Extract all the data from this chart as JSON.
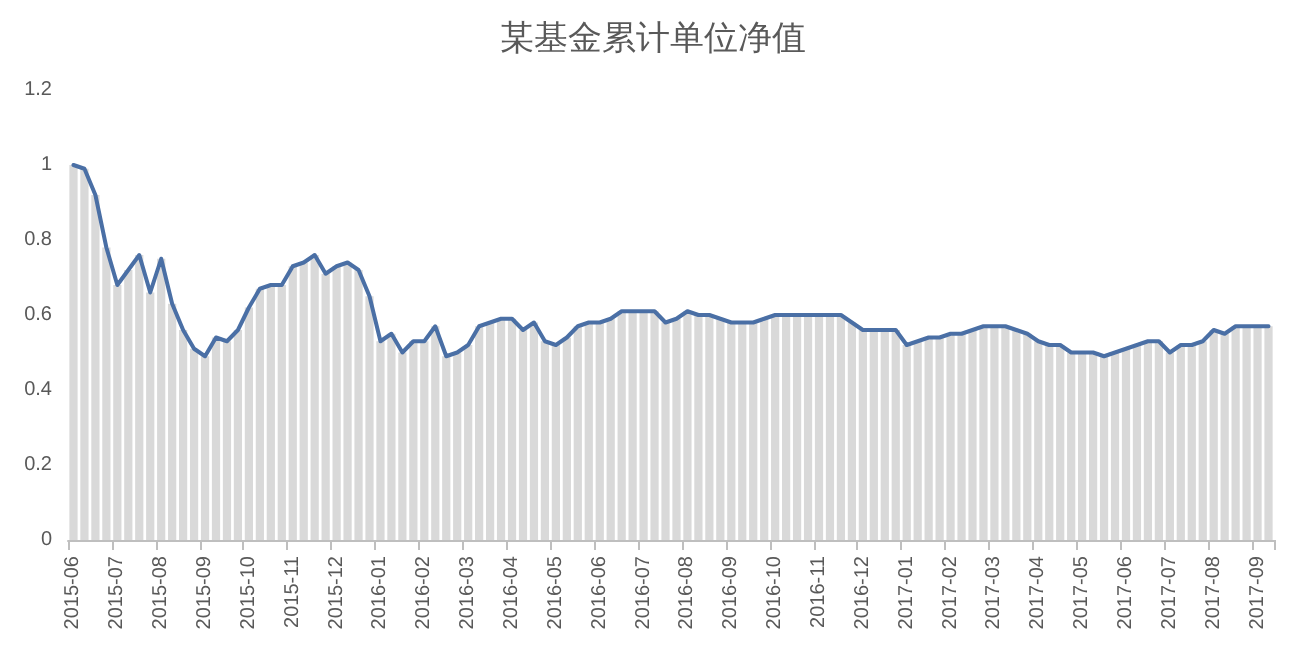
{
  "chart_data": {
    "type": "line",
    "title": "某基金累计单位净值",
    "categories": [
      "2015-06",
      null,
      null,
      null,
      "2015-07",
      null,
      null,
      null,
      "2015-08",
      null,
      null,
      null,
      "2015-09",
      null,
      null,
      null,
      "2015-10",
      null,
      null,
      null,
      "2015-11",
      null,
      null,
      null,
      "2015-12",
      null,
      null,
      null,
      "2016-01",
      null,
      null,
      null,
      "2016-02",
      null,
      null,
      null,
      "2016-03",
      null,
      null,
      null,
      "2016-04",
      null,
      null,
      null,
      "2016-05",
      null,
      null,
      null,
      "2016-06",
      null,
      null,
      null,
      "2016-07",
      null,
      null,
      null,
      "2016-08",
      null,
      null,
      null,
      "2016-09",
      null,
      null,
      null,
      "2016-10",
      null,
      null,
      null,
      "2016-11",
      null,
      null,
      null,
      "2016-12",
      null,
      null,
      null,
      "2017-01",
      null,
      null,
      null,
      "2017-02",
      null,
      null,
      null,
      "2017-03",
      null,
      null,
      null,
      "2017-04",
      null,
      null,
      null,
      "2017-05",
      null,
      null,
      null,
      "2017-06",
      null,
      null,
      null,
      "2017-07",
      null,
      null,
      null,
      "2017-08",
      null,
      null,
      null,
      "2017-09",
      null
    ],
    "series": [
      {
        "type": "bar",
        "color": "#d9d9d9",
        "values": [
          1.0,
          0.99,
          0.92,
          0.78,
          0.68,
          0.72,
          0.76,
          0.66,
          0.75,
          0.63,
          0.56,
          0.51,
          0.49,
          0.54,
          0.53,
          0.56,
          0.62,
          0.67,
          0.68,
          0.68,
          0.73,
          0.74,
          0.76,
          0.71,
          0.73,
          0.74,
          0.72,
          0.65,
          0.53,
          0.55,
          0.5,
          0.53,
          0.53,
          0.57,
          0.49,
          0.5,
          0.52,
          0.57,
          0.58,
          0.59,
          0.59,
          0.56,
          0.58,
          0.53,
          0.52,
          0.54,
          0.57,
          0.58,
          0.58,
          0.59,
          0.61,
          0.61,
          0.61,
          0.61,
          0.58,
          0.59,
          0.61,
          0.6,
          0.6,
          0.59,
          0.58,
          0.58,
          0.58,
          0.59,
          0.6,
          0.6,
          0.6,
          0.6,
          0.6,
          0.6,
          0.6,
          0.58,
          0.56,
          0.56,
          0.56,
          0.56,
          0.52,
          0.53,
          0.54,
          0.54,
          0.55,
          0.55,
          0.56,
          0.57,
          0.57,
          0.57,
          0.56,
          0.55,
          0.53,
          0.52,
          0.52,
          0.5,
          0.5,
          0.5,
          0.49,
          0.5,
          0.51,
          0.52,
          0.53,
          0.53,
          0.5,
          0.52,
          0.52,
          0.53,
          0.56,
          0.55,
          0.57,
          0.57,
          0.57,
          0.57
        ]
      },
      {
        "color": "#4a6fa5",
        "values": [
          1.0,
          0.99,
          0.92,
          0.78,
          0.68,
          0.72,
          0.76,
          0.66,
          0.75,
          0.63,
          0.56,
          0.51,
          0.49,
          0.54,
          0.53,
          0.56,
          0.62,
          0.67,
          0.68,
          0.68,
          0.73,
          0.74,
          0.76,
          0.71,
          0.73,
          0.74,
          0.72,
          0.65,
          0.53,
          0.55,
          0.5,
          0.53,
          0.53,
          0.57,
          0.49,
          0.5,
          0.52,
          0.57,
          0.58,
          0.59,
          0.59,
          0.56,
          0.58,
          0.53,
          0.52,
          0.54,
          0.57,
          0.58,
          0.58,
          0.59,
          0.61,
          0.61,
          0.61,
          0.61,
          0.58,
          0.59,
          0.61,
          0.6,
          0.6,
          0.59,
          0.58,
          0.58,
          0.58,
          0.59,
          0.6,
          0.6,
          0.6,
          0.6,
          0.6,
          0.6,
          0.6,
          0.58,
          0.56,
          0.56,
          0.56,
          0.56,
          0.52,
          0.53,
          0.54,
          0.54,
          0.55,
          0.55,
          0.56,
          0.57,
          0.57,
          0.57,
          0.56,
          0.55,
          0.53,
          0.52,
          0.52,
          0.5,
          0.5,
          0.5,
          0.49,
          0.5,
          0.51,
          0.52,
          0.53,
          0.53,
          0.5,
          0.52,
          0.52,
          0.53,
          0.56,
          0.55,
          0.57,
          0.57,
          0.57,
          0.57
        ]
      }
    ],
    "ylim": [
      0,
      1.2
    ],
    "yticks": [
      0,
      0.2,
      0.4,
      0.6,
      0.8,
      1,
      1.2
    ],
    "grid": false,
    "marker": "none",
    "line_style": "solid"
  }
}
